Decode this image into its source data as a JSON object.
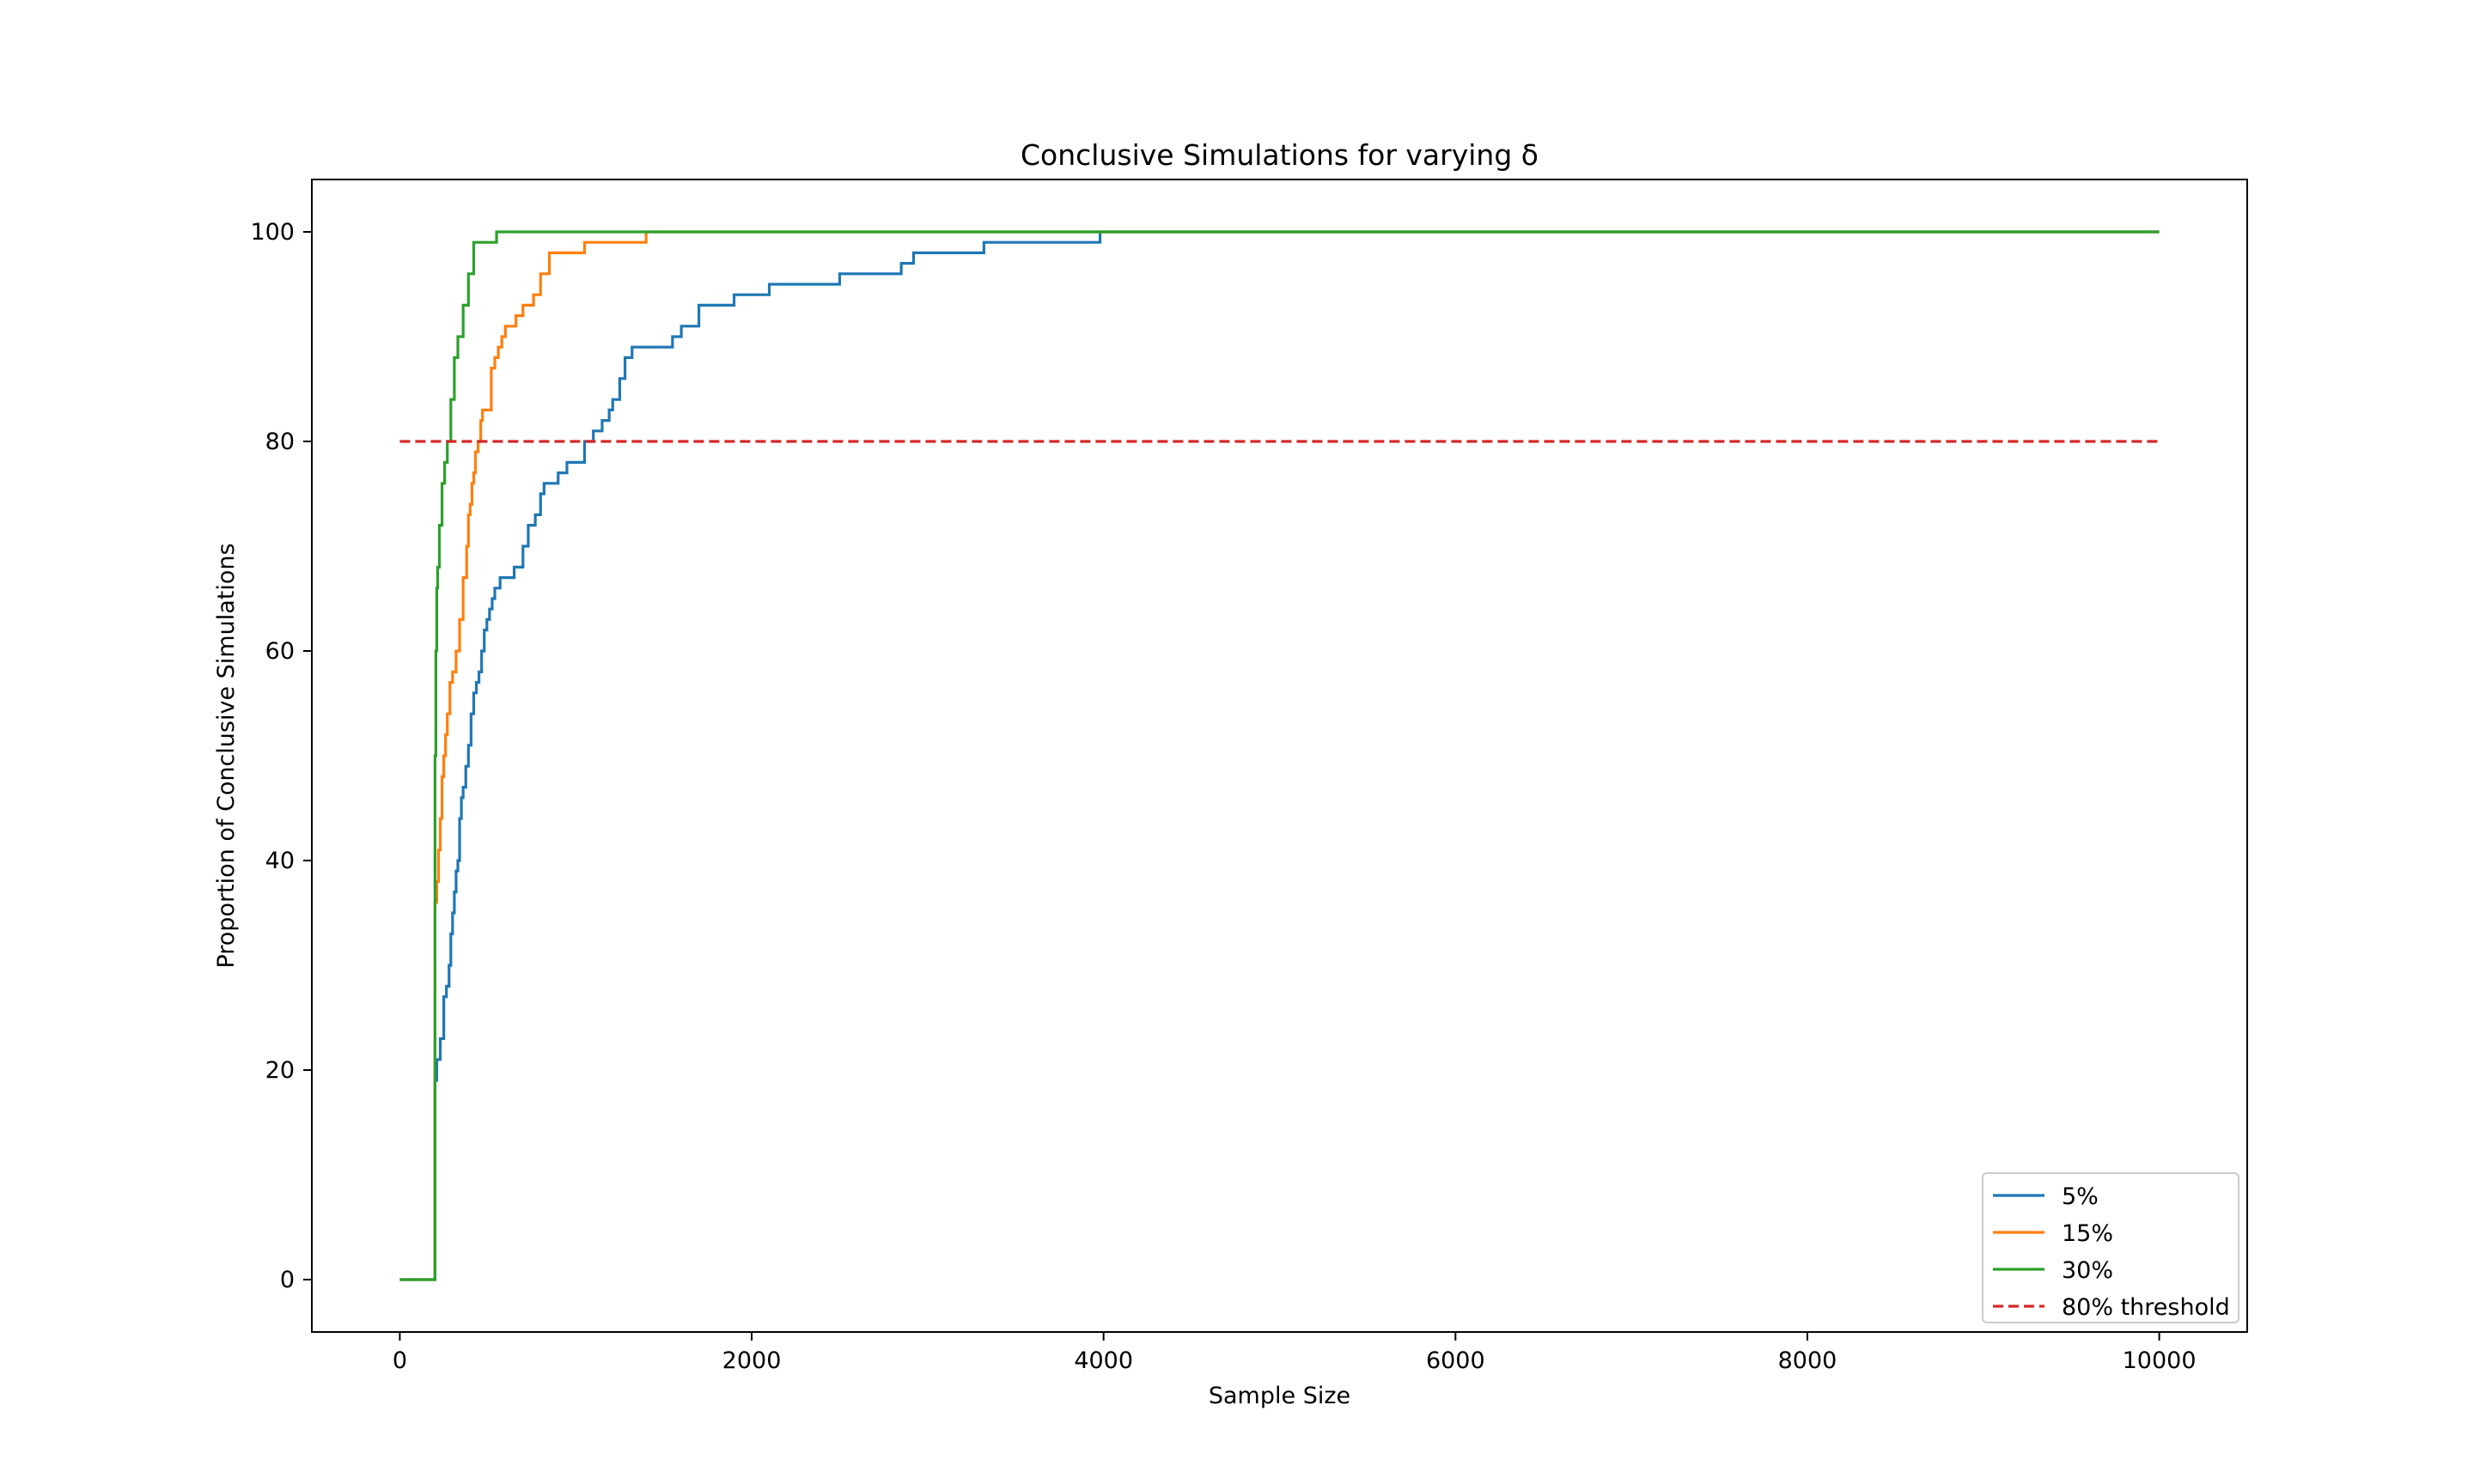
{
  "chart_data": {
    "type": "line",
    "title": "Conclusive Simulations for varying δ",
    "xlabel": "Sample Size",
    "ylabel": "Proportion of Conclusive Simulations",
    "xlim": [
      -500,
      10500
    ],
    "ylim": [
      -5,
      105
    ],
    "xticks": [
      0,
      2000,
      4000,
      6000,
      8000,
      10000
    ],
    "yticks": [
      0,
      20,
      40,
      60,
      80,
      100
    ],
    "grid": false,
    "legend_position": "bottom-right",
    "series": [
      {
        "name": "5%",
        "color": "#1f77b4",
        "step": true,
        "x": [
          0,
          200,
          210,
          230,
          250,
          265,
          280,
          290,
          300,
          310,
          320,
          330,
          340,
          350,
          360,
          375,
          390,
          405,
          420,
          435,
          450,
          465,
          480,
          495,
          510,
          525,
          540,
          555,
          570,
          590,
          610,
          650,
          700,
          730,
          770,
          800,
          820,
          850,
          900,
          950,
          1050,
          1100,
          1150,
          1190,
          1210,
          1250,
          1280,
          1320,
          1400,
          1550,
          1600,
          1700,
          1900,
          2100,
          2500,
          2850,
          2920,
          3320,
          3980,
          10000
        ],
        "y": [
          0,
          19,
          21,
          23,
          27,
          28,
          30,
          33,
          35,
          37,
          39,
          40,
          44,
          46,
          47,
          49,
          51,
          54,
          56,
          57,
          58,
          60,
          62,
          63,
          64,
          65,
          66,
          66,
          67,
          67,
          67,
          68,
          70,
          72,
          73,
          75,
          76,
          76,
          77,
          78,
          80,
          81,
          82,
          83,
          84,
          86,
          88,
          89,
          89,
          90,
          91,
          93,
          94,
          95,
          96,
          97,
          98,
          99,
          100,
          100
        ]
      },
      {
        "name": "15%",
        "color": "#ff7f0e",
        "step": true,
        "x": [
          0,
          200,
          210,
          220,
          230,
          240,
          250,
          260,
          270,
          285,
          300,
          320,
          340,
          360,
          380,
          390,
          400,
          410,
          420,
          430,
          445,
          460,
          470,
          490,
          520,
          540,
          560,
          580,
          600,
          630,
          660,
          700,
          760,
          800,
          850,
          1050,
          1400,
          10000
        ],
        "y": [
          0,
          36,
          38,
          41,
          44,
          48,
          50,
          52,
          54,
          57,
          58,
          60,
          63,
          67,
          70,
          73,
          74,
          76,
          77,
          79,
          80,
          82,
          83,
          83,
          87,
          88,
          89,
          90,
          91,
          91,
          92,
          93,
          94,
          96,
          98,
          99,
          100,
          100
        ]
      },
      {
        "name": "30%",
        "color": "#2ca02c",
        "step": true,
        "x": [
          0,
          200,
          205,
          210,
          215,
          225,
          240,
          255,
          270,
          290,
          310,
          330,
          360,
          390,
          420,
          550,
          10000
        ],
        "y": [
          0,
          50,
          60,
          66,
          68,
          72,
          76,
          78,
          80,
          84,
          88,
          90,
          93,
          96,
          99,
          100,
          100
        ]
      },
      {
        "name": "80% threshold",
        "color": "#d62728",
        "dashed": true,
        "x": [
          0,
          10000
        ],
        "y": [
          80,
          80
        ]
      }
    ]
  }
}
